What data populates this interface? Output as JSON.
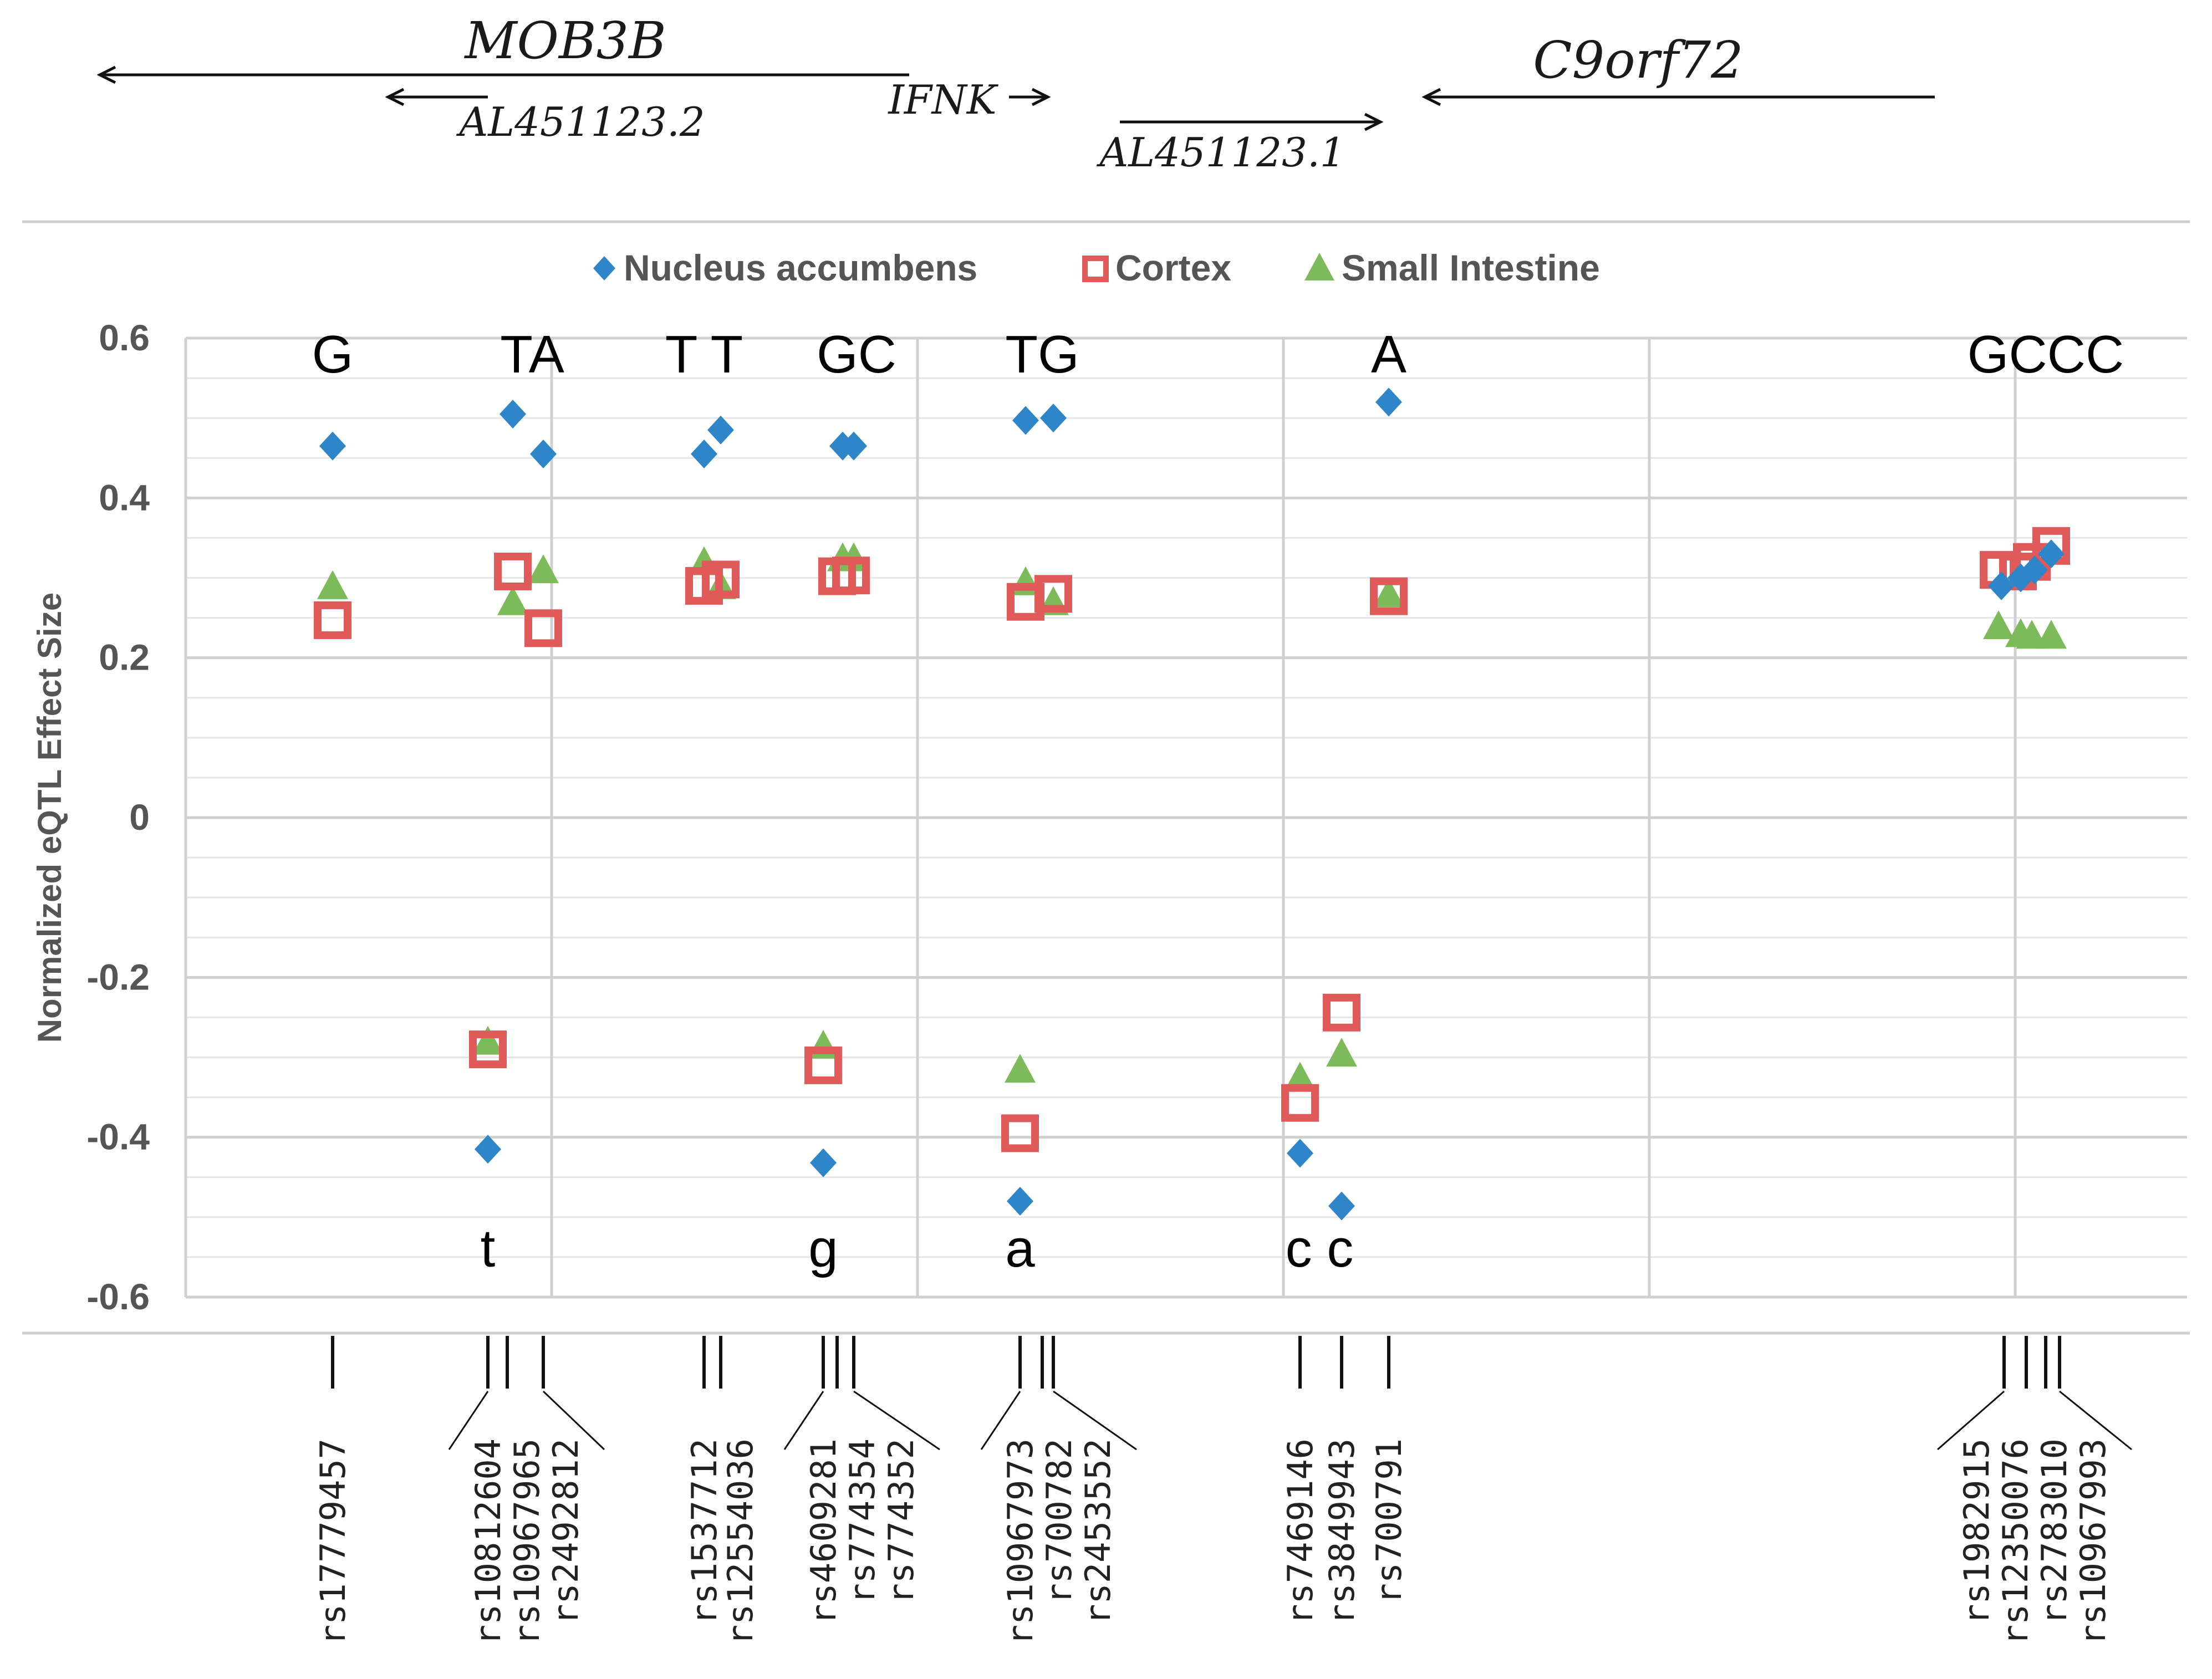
{
  "colors": {
    "nucleus": "#2E86C8",
    "cortex": "#E05A5A",
    "intestine": "#7DBB5A",
    "grid_major": "#d0d0d0",
    "grid_minor": "#e6e6e6",
    "axis_text": "#555555"
  },
  "genes": [
    {
      "name": "MOB3B",
      "from": 180,
      "to": 1640,
      "direction": "left"
    },
    {
      "name": "AL451123.2",
      "from": 700,
      "to": 880,
      "direction": "left"
    },
    {
      "name": "IFNK",
      "from": 1820,
      "to": 1890,
      "direction": "right"
    },
    {
      "name": "AL451123.1",
      "from": 2020,
      "to": 2490,
      "direction": "right"
    },
    {
      "name": "C9orf72",
      "from": 2570,
      "to": 3490,
      "direction": "left"
    }
  ],
  "chart_data": {
    "type": "scatter",
    "title": "",
    "xlabel": "",
    "ylabel": "Normalized eQTL Effect Size",
    "ylim": [
      -0.6,
      0.6
    ],
    "yticks": [
      "0.6",
      "0.4",
      "0.2",
      "0",
      "-0.2",
      "-0.4",
      "-0.6"
    ],
    "ytick_values": [
      0.6,
      0.4,
      0.2,
      0,
      -0.2,
      -0.4,
      -0.6
    ],
    "grid": true,
    "legend_position": "top-center",
    "legend": [
      "Nucleus accumbens",
      "Cortex",
      "Small Intestine"
    ],
    "snps": [
      "rs17779457",
      "rs10812604",
      "rs10967965",
      "rs2492812",
      "rs1537712",
      "rs12554036",
      "rs4609281",
      "rs774354",
      "rs774352",
      "rs10967973",
      "rs700782",
      "rs2453552",
      "rs7469146",
      "rs3849943",
      "rs700791",
      "rs1982915",
      "rs12350076",
      "rs2783010",
      "rs10967993"
    ],
    "snp_x": [
      600,
      880,
      915,
      980,
      1270,
      1300,
      1485,
      1510,
      1540,
      1840,
      1880,
      1900,
      2345,
      2420,
      2505,
      3615,
      3655,
      3690,
      3715
    ],
    "series": [
      {
        "name": "Nucleus accumbens",
        "marker": "diamond",
        "x": [
          600,
          925,
          980,
          1270,
          1300,
          1520,
          1540,
          1850,
          1900,
          2505,
          880,
          1485,
          1840,
          2345,
          2420,
          3610,
          3645,
          3670,
          3700
        ],
        "values": [
          0.465,
          0.505,
          0.455,
          0.455,
          0.485,
          0.465,
          0.465,
          0.497,
          0.5,
          0.52,
          -0.415,
          -0.432,
          -0.48,
          -0.42,
          -0.486,
          0.29,
          0.3,
          0.31,
          0.33
        ]
      },
      {
        "name": "Cortex",
        "marker": "square",
        "x": [
          600,
          925,
          980,
          1270,
          1300,
          1510,
          1535,
          1850,
          1900,
          2505,
          880,
          1485,
          1840,
          2345,
          2420,
          3605,
          3640,
          3665,
          3700
        ],
        "values": [
          0.247,
          0.308,
          0.237,
          0.29,
          0.298,
          0.302,
          0.303,
          0.27,
          0.28,
          0.277,
          -0.29,
          -0.31,
          -0.395,
          -0.357,
          -0.244,
          0.31,
          0.308,
          0.32,
          0.34
        ]
      },
      {
        "name": "Small Intestine",
        "marker": "triangle",
        "x": [
          600,
          925,
          980,
          1270,
          1300,
          1520,
          1540,
          1850,
          1900,
          2505,
          880,
          1485,
          1840,
          2345,
          2420,
          3605,
          3645,
          3665,
          3700
        ],
        "values": [
          0.29,
          0.27,
          0.31,
          0.32,
          0.29,
          0.325,
          0.325,
          0.295,
          0.27,
          0.28,
          -0.28,
          -0.285,
          -0.315,
          -0.325,
          -0.295,
          0.24,
          0.23,
          0.228,
          0.228
        ]
      }
    ],
    "annotations_top": [
      {
        "text": "G",
        "x": 600
      },
      {
        "text": "TA",
        "x": 960
      },
      {
        "text": "T T",
        "x": 1270
      },
      {
        "text": "GC",
        "x": 1545
      },
      {
        "text": "TG",
        "x": 1880
      },
      {
        "text": "A",
        "x": 2505
      },
      {
        "text": "GCCC",
        "x": 3690
      }
    ],
    "annotations_bottom": [
      {
        "text": "t",
        "x": 880
      },
      {
        "text": "g",
        "x": 1485
      },
      {
        "text": "a",
        "x": 1840
      },
      {
        "text": "c c",
        "x": 2380
      }
    ]
  }
}
